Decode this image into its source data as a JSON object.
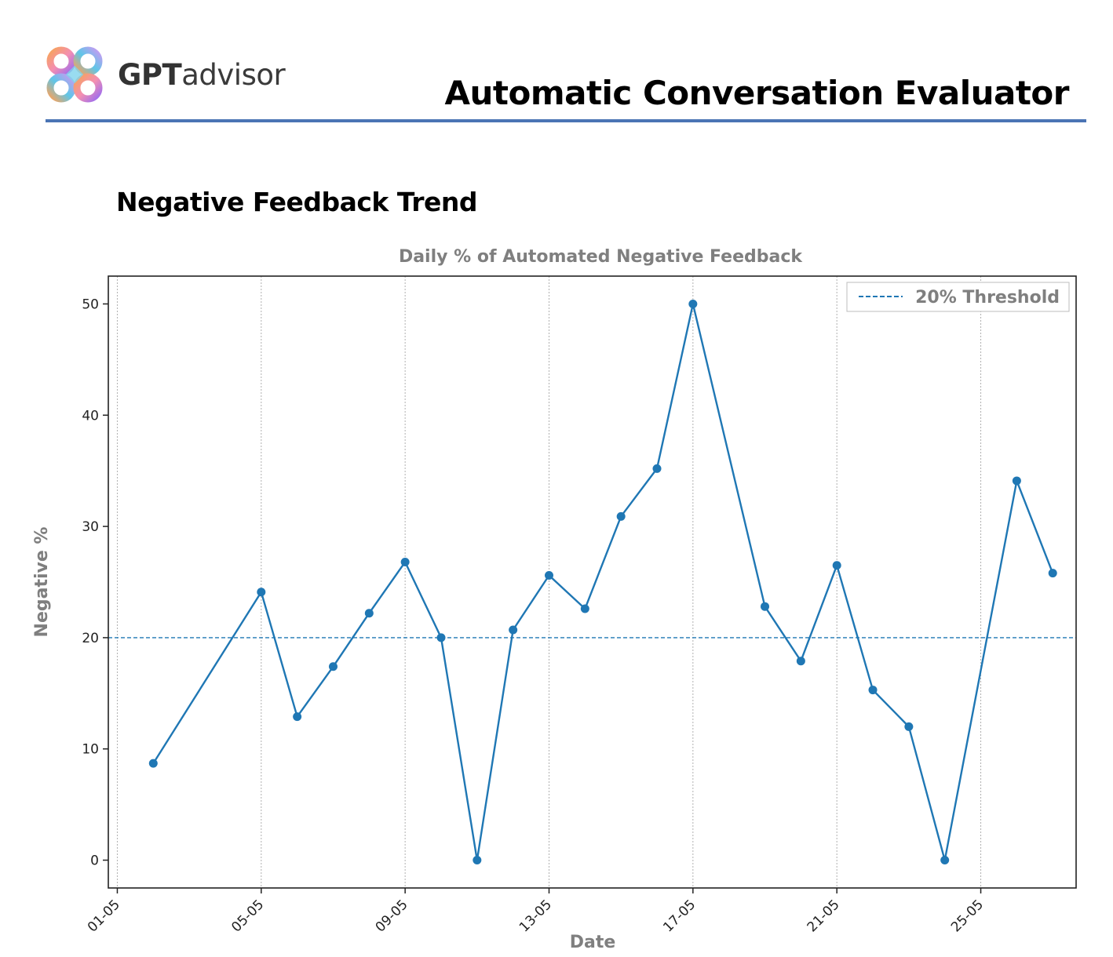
{
  "header": {
    "logo_prefix": "GPT",
    "logo_suffix": "advisor",
    "app_title": "Automatic Conversation Evaluator"
  },
  "section": {
    "title": "Negative Feedback Trend"
  },
  "colors": {
    "rule": "#4a74b4",
    "series": "#1f77b4",
    "axis_label": "#7f7f7f"
  },
  "chart_data": {
    "type": "line",
    "title": "Daily % of Automated Negative Feedback",
    "xlabel": "Date",
    "ylabel": "Negative %",
    "ylim": [
      -2.5,
      52.5
    ],
    "yticks": [
      0,
      10,
      20,
      30,
      40,
      50
    ],
    "xticks": [
      "01-05",
      "05-05",
      "09-05",
      "13-05",
      "17-05",
      "21-05",
      "25-05"
    ],
    "grid": "vertical-dotted",
    "legend_position": "top-right",
    "series": [
      {
        "x": [
          "02-05",
          "05-05",
          "06-05",
          "07-05",
          "08-05",
          "09-05",
          "10-05",
          "11-05",
          "12-05",
          "13-05",
          "14-05",
          "15-05",
          "16-05",
          "17-05",
          "19-05",
          "20-05",
          "21-05",
          "22-05",
          "23-05",
          "24-05",
          "26-05",
          "27-05"
        ],
        "values": [
          8.7,
          24.1,
          12.9,
          17.4,
          22.2,
          26.8,
          20.0,
          0.0,
          20.7,
          25.6,
          22.6,
          30.9,
          35.2,
          50.0,
          22.8,
          17.9,
          26.5,
          15.3,
          12.0,
          0.0,
          34.1,
          25.8
        ]
      }
    ],
    "threshold": {
      "name": "20% Threshold",
      "value": 20
    }
  }
}
